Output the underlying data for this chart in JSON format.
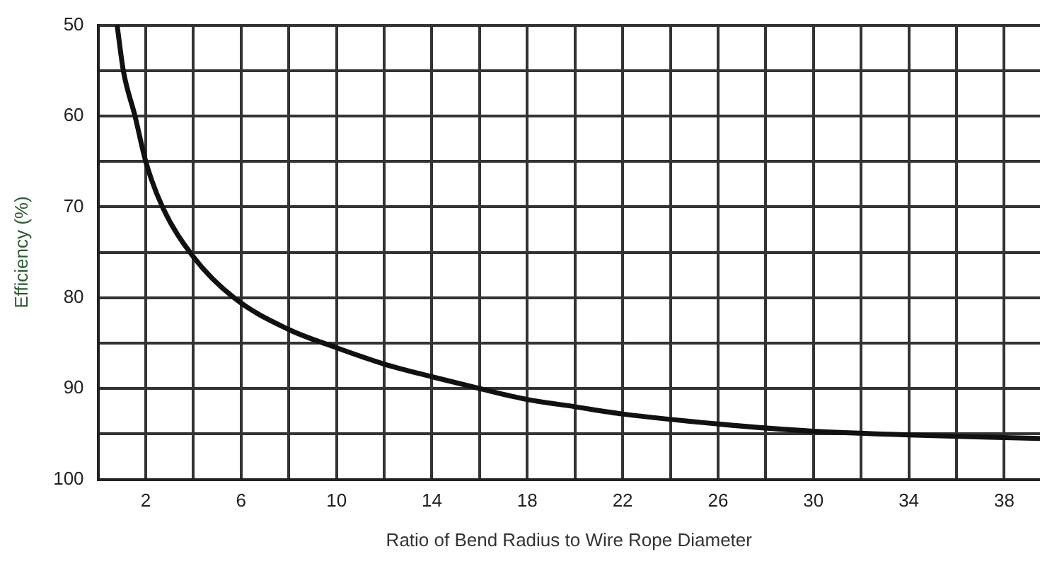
{
  "chart_data": {
    "type": "line",
    "xlabel": "Ratio of Bend Radius to Wire Rope Diameter",
    "ylabel": "Efficiency (%)",
    "x": [
      0.8,
      1.06,
      1.55,
      2,
      2.7,
      4,
      5.7,
      8,
      10,
      12,
      14,
      16,
      18,
      20,
      22,
      26,
      30,
      34,
      38,
      39.5
    ],
    "series": [
      {
        "color": "#111111",
        "values": [
          50,
          55,
          60,
          65,
          70,
          75.5,
          80,
          83.5,
          85.5,
          87.3,
          88.7,
          90,
          91.2,
          92,
          92.8,
          93.9,
          94.7,
          95.1,
          95.4,
          95.5
        ]
      }
    ],
    "xlim": [
      0,
      39.5
    ],
    "xticks": [
      {
        "value": 0,
        "label": null
      },
      2,
      {
        "value": 4,
        "label": null
      },
      6,
      {
        "value": 8,
        "label": null
      },
      10,
      {
        "value": 12,
        "label": null
      },
      14,
      {
        "value": 16,
        "label": null
      },
      18,
      {
        "value": 20,
        "label": null
      },
      22,
      {
        "value": 24,
        "label": null
      },
      26,
      {
        "value": 28,
        "label": null
      },
      30,
      {
        "value": 32,
        "label": null
      },
      34,
      {
        "value": 36,
        "label": null
      },
      38
    ],
    "ylim": [
      100,
      50
    ],
    "yticks": [
      50,
      {
        "value": 55,
        "label": null
      },
      60,
      {
        "value": 65,
        "label": null
      },
      70,
      {
        "value": 75,
        "label": null
      },
      80,
      {
        "value": 85,
        "label": null
      },
      90,
      {
        "value": 95,
        "label": null
      },
      100
    ],
    "grid": true,
    "legend": false,
    "marker": "none",
    "line_style": "solid"
  }
}
